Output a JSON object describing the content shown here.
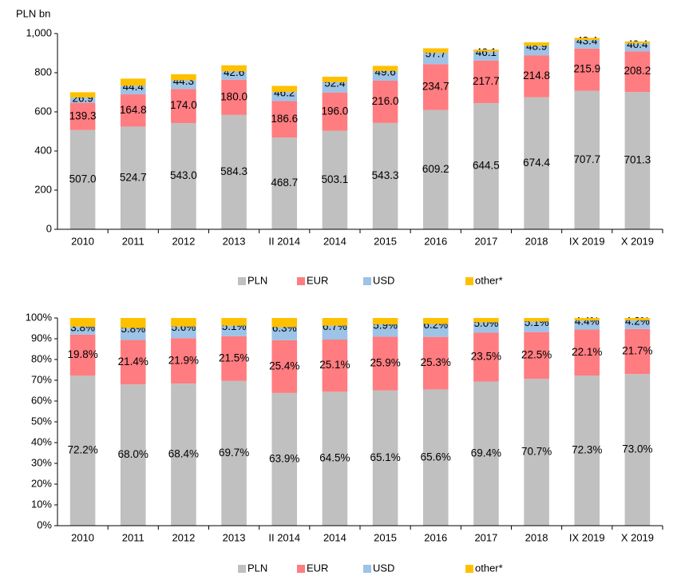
{
  "chart_data": [
    {
      "type": "stacked_bar",
      "y_label": "PLN bn",
      "categories": [
        "2010",
        "2011",
        "2012",
        "2013",
        "II 2014",
        "2014",
        "2015",
        "2016",
        "2017",
        "2018",
        "IX 2019",
        "X 2019"
      ],
      "ylim": [
        0,
        1000
      ],
      "yticks": [
        0,
        200,
        400,
        600,
        800,
        {
          "value": 1000,
          "label": "1,000"
        }
      ],
      "grid": false,
      "legend": "bottom",
      "series": [
        {
          "name": "PLN",
          "color": "#c0c0c0",
          "values": [
            507.0,
            524.7,
            543.0,
            584.3,
            468.7,
            503.1,
            543.3,
            609.2,
            644.5,
            674.4,
            707.7,
            701.3
          ],
          "value_labels": [
            "507.0",
            "524.7",
            "543.0",
            "584.3",
            "468.7",
            "503.1",
            "543.3",
            "609.2",
            "644.5",
            "674.4",
            "707.7",
            "701.3"
          ]
        },
        {
          "name": "EUR",
          "color": "#ff7c80",
          "values": [
            139.3,
            164.8,
            174.0,
            180.0,
            186.6,
            196.0,
            216.0,
            234.7,
            217.7,
            214.8,
            215.9,
            208.2
          ],
          "value_labels": [
            "139.3",
            "164.8",
            "174.0",
            "180.0",
            "186.6",
            "196.0",
            "216.0",
            "234.7",
            "217.7",
            "214.8",
            "215.9",
            "208.2"
          ]
        },
        {
          "name": "USD",
          "color": "#9dc3e6",
          "values": [
            26.9,
            44.4,
            44.3,
            42.6,
            46.2,
            52.4,
            49.6,
            57.7,
            46.1,
            48.9,
            43.4,
            40.4
          ],
          "value_labels": [
            "26.9",
            "44.4",
            "44.3",
            "42.6",
            "46.2",
            "52.4",
            "49.6",
            "57.7",
            "46.1",
            "48.9",
            "43.4",
            "40.4"
          ]
        },
        {
          "name": "other*",
          "color": "#ffc000",
          "values": [
            27,
            36,
            31,
            31,
            31,
            28,
            26,
            23,
            10,
            17,
            11,
            10
          ]
        }
      ]
    },
    {
      "type": "stacked_bar",
      "categories": [
        "2010",
        "2011",
        "2012",
        "2013",
        "II 2014",
        "2014",
        "2015",
        "2016",
        "2017",
        "2018",
        "IX 2019",
        "X 2019"
      ],
      "ylim": [
        0,
        100
      ],
      "yticks": [
        {
          "value": 0,
          "label": "0%"
        },
        {
          "value": 10,
          "label": "10%"
        },
        {
          "value": 20,
          "label": "20%"
        },
        {
          "value": 30,
          "label": "30%"
        },
        {
          "value": 40,
          "label": "40%"
        },
        {
          "value": 50,
          "label": "50%"
        },
        {
          "value": 60,
          "label": "60%"
        },
        {
          "value": 70,
          "label": "70%"
        },
        {
          "value": 80,
          "label": "80%"
        },
        {
          "value": 90,
          "label": "90%"
        },
        {
          "value": 100,
          "label": "100%"
        }
      ],
      "grid": false,
      "legend": "bottom",
      "series": [
        {
          "name": "PLN",
          "color": "#c0c0c0",
          "values": [
            72.2,
            68.0,
            68.4,
            69.7,
            63.9,
            64.5,
            65.1,
            65.6,
            69.4,
            70.7,
            72.3,
            73.0
          ],
          "value_labels": [
            "72.2%",
            "68.0%",
            "68.4%",
            "69.7%",
            "63.9%",
            "64.5%",
            "65.1%",
            "65.6%",
            "69.4%",
            "70.7%",
            "72.3%",
            "73.0%"
          ]
        },
        {
          "name": "EUR",
          "color": "#ff7c80",
          "values": [
            19.8,
            21.4,
            21.9,
            21.5,
            25.4,
            25.1,
            25.9,
            25.3,
            23.5,
            22.5,
            22.1,
            21.7
          ],
          "value_labels": [
            "19.8%",
            "21.4%",
            "21.9%",
            "21.5%",
            "25.4%",
            "25.1%",
            "25.9%",
            "25.3%",
            "23.5%",
            "22.5%",
            "22.1%",
            "21.7%"
          ]
        },
        {
          "name": "USD",
          "color": "#9dc3e6",
          "values": [
            3.8,
            5.8,
            5.6,
            5.1,
            6.3,
            6.7,
            5.9,
            6.2,
            5.0,
            5.1,
            4.4,
            4.2
          ],
          "value_labels": [
            "3.8%",
            "5.8%",
            "5.6%",
            "5.1%",
            "6.3%",
            "6.7%",
            "5.9%",
            "6.2%",
            "5.0%",
            "5.1%",
            "4.4%",
            "4.2%"
          ]
        },
        {
          "name": "other*",
          "color": "#ffc000",
          "values": [
            4.2,
            4.8,
            4.1,
            3.7,
            4.4,
            3.7,
            3.1,
            2.9,
            2.1,
            1.7,
            1.2,
            1.1
          ]
        }
      ]
    }
  ]
}
